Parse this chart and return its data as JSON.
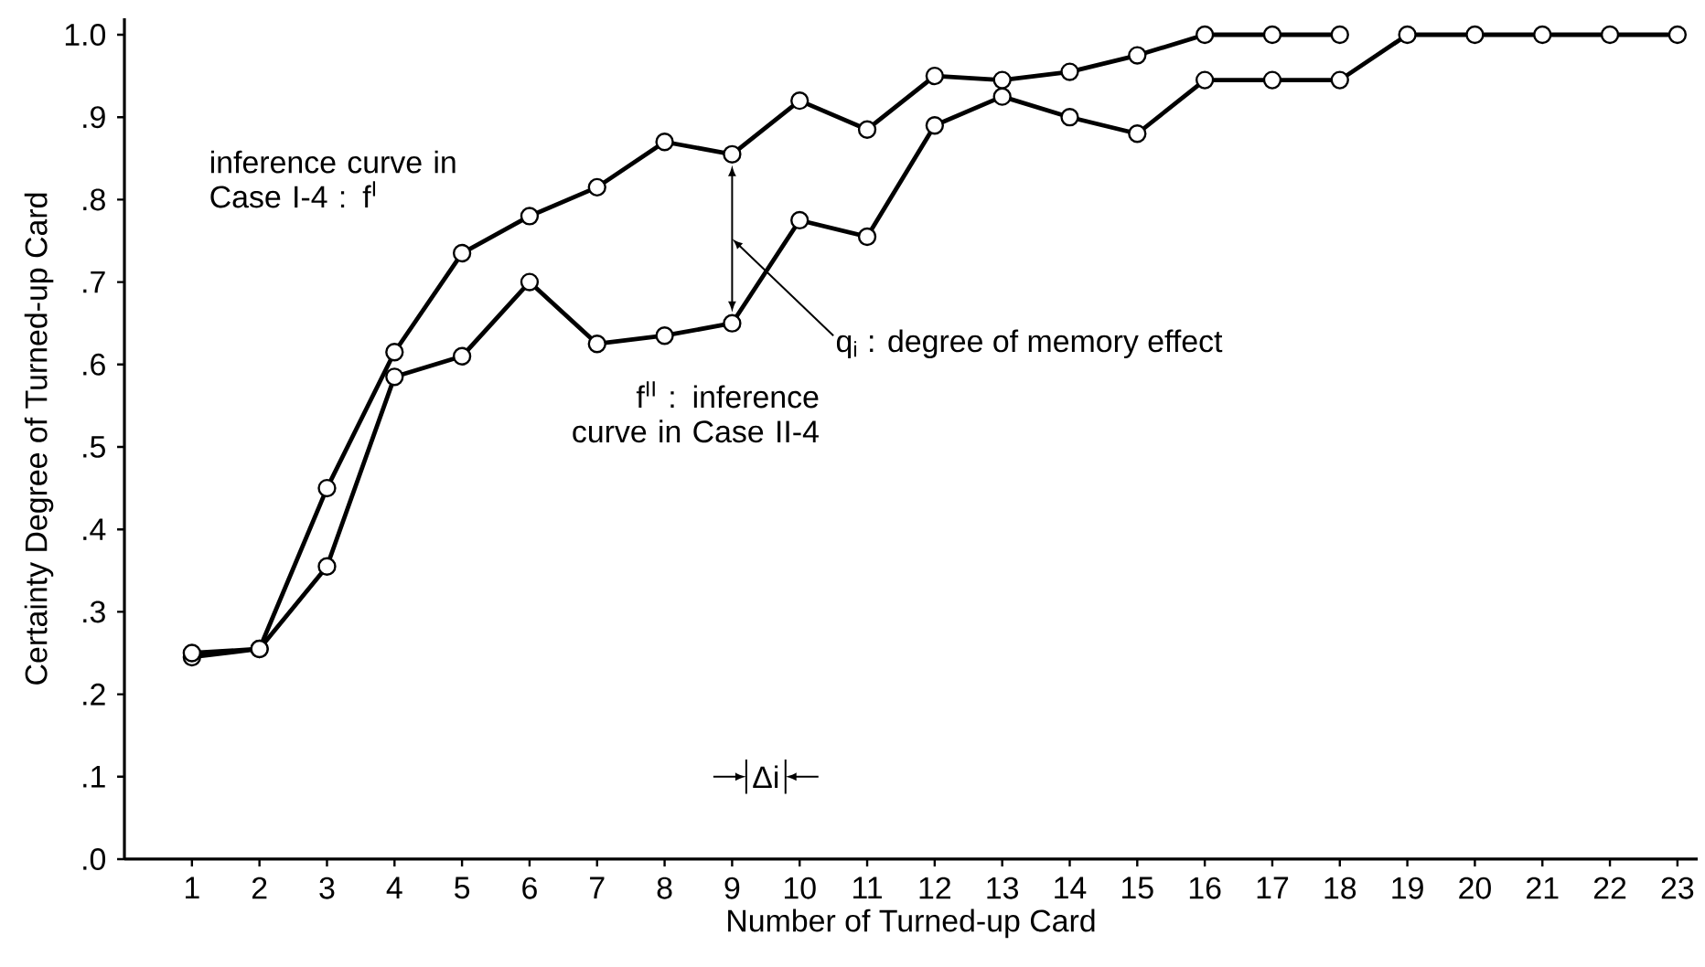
{
  "chart_data": {
    "type": "line",
    "xlabel": "Number of Turned-up Card",
    "ylabel": "Certainty Degree of Turned-up Card",
    "x": [
      1,
      2,
      3,
      4,
      5,
      6,
      7,
      8,
      9,
      10,
      11,
      12,
      13,
      14,
      15,
      16,
      17,
      18,
      19,
      20,
      21,
      22,
      23
    ],
    "series": [
      {
        "color": "#000000",
        "values": [
          0.245,
          0.255,
          0.45,
          0.615,
          0.735,
          0.78,
          0.815,
          0.87,
          0.855,
          0.92,
          0.885,
          0.95,
          0.945,
          0.955,
          0.975,
          1.0,
          1.0,
          1.0,
          null,
          null,
          null,
          null,
          null
        ]
      },
      {
        "color": "#000000",
        "values": [
          0.25,
          0.255,
          0.355,
          0.585,
          0.61,
          0.7,
          0.625,
          0.635,
          0.65,
          0.775,
          0.755,
          0.89,
          0.925,
          0.9,
          0.88,
          0.945,
          0.945,
          0.945,
          1.0,
          1.0,
          1.0,
          1.0,
          1.0
        ]
      }
    ],
    "xlim": [
      0,
      23.3
    ],
    "ylim": [
      0,
      1.02
    ],
    "xticks": [
      1,
      2,
      3,
      4,
      5,
      6,
      7,
      8,
      9,
      10,
      11,
      12,
      13,
      14,
      15,
      16,
      17,
      18,
      19,
      20,
      21,
      22,
      23
    ],
    "yticks": [
      {
        "value": 0,
        "label": ".0"
      },
      {
        "value": 0.1,
        "label": ".1"
      },
      {
        "value": 0.2,
        "label": ".2"
      },
      {
        "value": 0.3,
        "label": ".3"
      },
      {
        "value": 0.4,
        "label": ".4"
      },
      {
        "value": 0.5,
        "label": ".5"
      },
      {
        "value": 0.6,
        "label": ".6"
      },
      {
        "value": 0.7,
        "label": ".7"
      },
      {
        "value": 0.8,
        "label": ".8"
      },
      {
        "value": 0.9,
        "label": ".9"
      },
      {
        "value": 1.0,
        "label": "1.0"
      }
    ],
    "annotations": [
      "inference curve in Case I-4 : f$^{I}$",
      "q$_{i}$ : degree of memory effect",
      "f$^{II}$ : inference curve in Case II-4",
      "Δi"
    ],
    "marker": "circle",
    "line_style": "solid",
    "grid": false
  }
}
